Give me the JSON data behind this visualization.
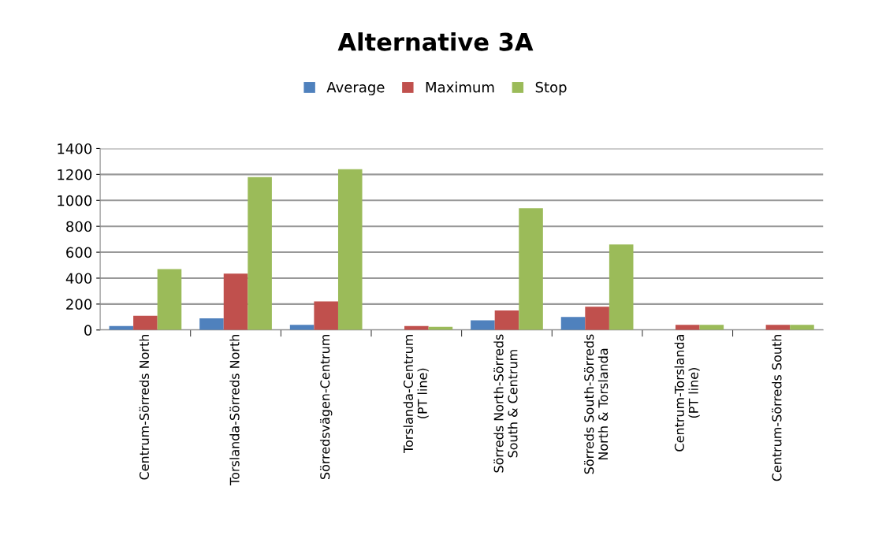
{
  "chart_data": {
    "type": "bar",
    "title": "Alternative 3A",
    "categories": [
      "Centrum-Sörreds North",
      "Torslanda-Sörreds North",
      "Sörredsvägen-Centrum",
      "Torslanda-Centrum (PT line)",
      "Sörreds North-Sörreds South & Centrum",
      "Sörreds South-Sörreds North & Torslanda",
      "Centrum-Torslanda (PT line)",
      "Centrum-Sörreds South"
    ],
    "series": [
      {
        "name": "Average",
        "color": "#4f81bd",
        "values": [
          30,
          90,
          40,
          null,
          75,
          100,
          null,
          null
        ]
      },
      {
        "name": "Maximum",
        "color": "#c0504d",
        "values": [
          110,
          435,
          220,
          30,
          150,
          180,
          40,
          40
        ]
      },
      {
        "name": "Stop",
        "color": "#9bbb59",
        "values": [
          470,
          1180,
          1240,
          25,
          940,
          660,
          40,
          40
        ]
      }
    ],
    "ylim": [
      0,
      1400
    ],
    "yticks": [
      0,
      200,
      400,
      600,
      800,
      1000,
      1200,
      1400
    ],
    "grid": "y",
    "legend": "top"
  }
}
